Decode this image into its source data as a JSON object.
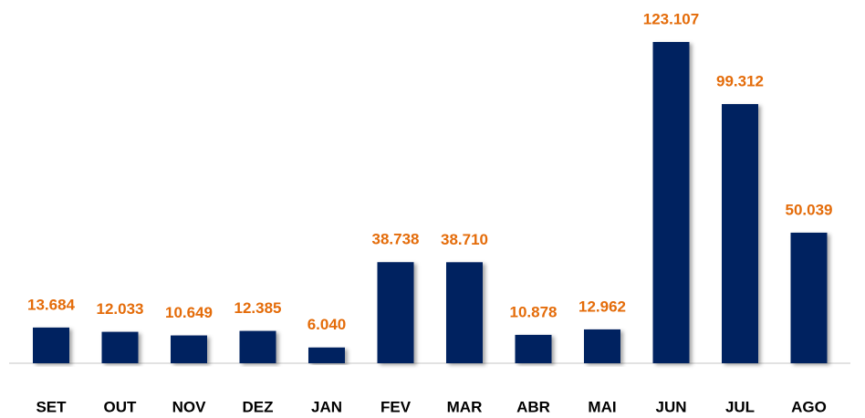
{
  "chart_data": {
    "type": "bar",
    "categories": [
      "SET",
      "OUT",
      "NOV",
      "DEZ",
      "JAN",
      "FEV",
      "MAR",
      "ABR",
      "MAI",
      "JUN",
      "JUL",
      "AGO"
    ],
    "values": [
      13684,
      12033,
      10649,
      12385,
      6040,
      38738,
      38710,
      10878,
      12962,
      123107,
      99312,
      50039
    ],
    "value_labels": [
      "13.684",
      "12.033",
      "10.649",
      "12.385",
      "6.040",
      "38.738",
      "38.710",
      "10.878",
      "12.962",
      "123.107",
      "99.312",
      "50.039"
    ],
    "color": "#002060",
    "label_color": "#E46C0A"
  }
}
